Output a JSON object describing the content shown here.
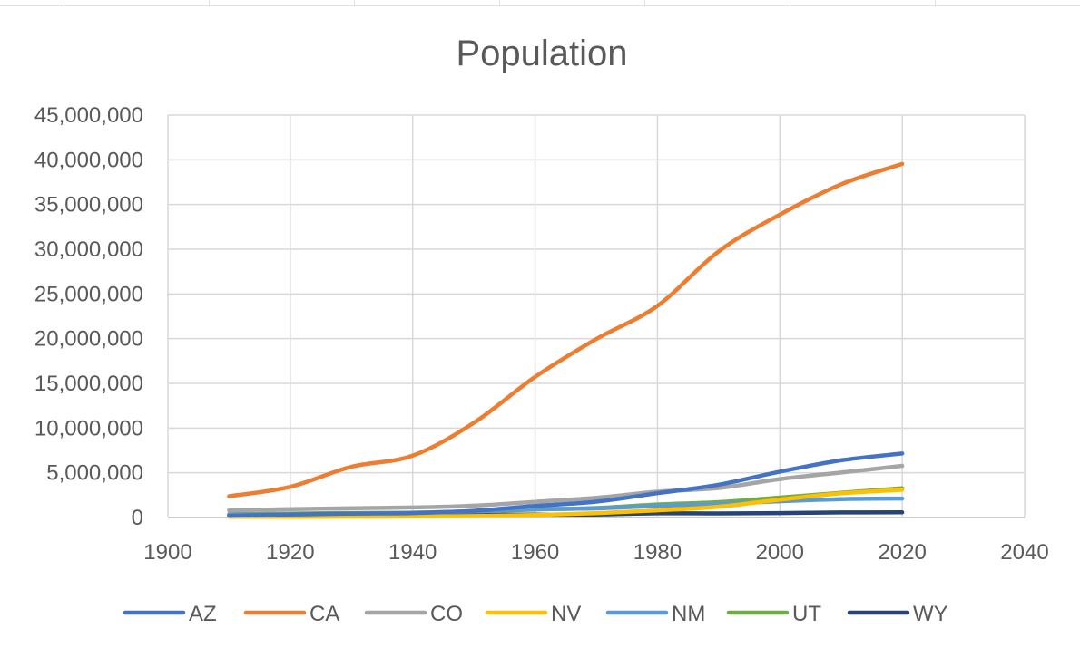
{
  "chart_data": {
    "type": "line",
    "title": "Population",
    "xlabel": "",
    "ylabel": "",
    "xlim": [
      1900,
      2040
    ],
    "ylim": [
      0,
      45000000
    ],
    "x_ticks": [
      "1900",
      "1920",
      "1940",
      "1960",
      "1980",
      "2000",
      "2020",
      "2040"
    ],
    "y_ticks": [
      "0",
      "5,000,000",
      "10,000,000",
      "15,000,000",
      "20,000,000",
      "25,000,000",
      "30,000,000",
      "35,000,000",
      "40,000,000",
      "45,000,000"
    ],
    "grid": true,
    "legend_position": "bottom",
    "x": [
      1910,
      1920,
      1930,
      1940,
      1950,
      1960,
      1970,
      1980,
      1990,
      2000,
      2010,
      2020
    ],
    "series": [
      {
        "name": "AZ",
        "color": "#4472c4",
        "values": [
          204354,
          334162,
          435573,
          499261,
          749587,
          1302161,
          1770900,
          2718215,
          3665228,
          5130632,
          6392017,
          7151502
        ]
      },
      {
        "name": "CA",
        "color": "#ed7d31",
        "values": [
          2377549,
          3426861,
          5677251,
          6907387,
          10586223,
          15717204,
          19953134,
          23667902,
          29760021,
          33871648,
          37253956,
          39538223
        ]
      },
      {
        "name": "CO",
        "color": "#a5a5a5",
        "values": [
          799024,
          939629,
          1035791,
          1123296,
          1325089,
          1753947,
          2207259,
          2889964,
          3294394,
          4301261,
          5029196,
          5773714
        ]
      },
      {
        "name": "NV",
        "color": "#ffc000",
        "values": [
          81875,
          77407,
          91058,
          110247,
          160083,
          285278,
          488738,
          800493,
          1201833,
          1998257,
          2700551,
          3104614
        ]
      },
      {
        "name": "NM",
        "color": "#5b9bd5",
        "values": [
          327301,
          360350,
          423317,
          531818,
          681187,
          951023,
          1016000,
          1302894,
          1515069,
          1819046,
          2059179,
          2117522
        ]
      },
      {
        "name": "UT",
        "color": "#70ad47",
        "values": [
          373351,
          449396,
          507847,
          550310,
          688862,
          890627,
          1059273,
          1461037,
          1722850,
          2233169,
          2763885,
          3271616
        ]
      },
      {
        "name": "WY",
        "color": "#264478",
        "values": [
          145965,
          194402,
          225565,
          250742,
          290529,
          330066,
          332416,
          469557,
          453588,
          493782,
          563626,
          576851
        ]
      }
    ]
  }
}
